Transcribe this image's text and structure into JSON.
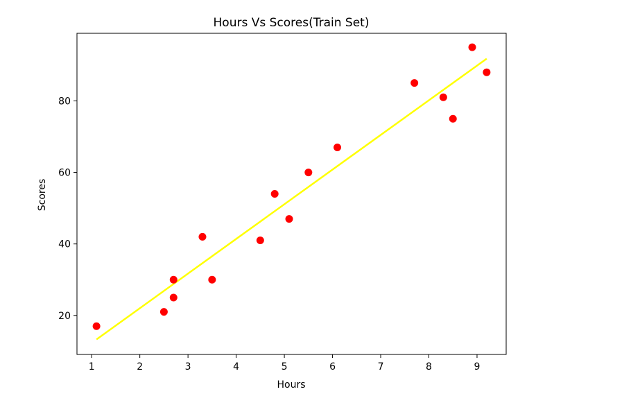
{
  "chart_data": {
    "type": "scatter",
    "title": "Hours Vs Scores(Train Set)",
    "xlabel": "Hours",
    "ylabel": "Scores",
    "xlim": [
      0.695,
      9.605
    ],
    "ylim": [
      9.1,
      98.9
    ],
    "xticks": [
      1,
      2,
      3,
      4,
      5,
      6,
      7,
      8,
      9
    ],
    "yticks": [
      20,
      40,
      60,
      80
    ],
    "grid": false,
    "series": [
      {
        "type": "scatter",
        "color": "#ff0000",
        "points": [
          {
            "x": 1.1,
            "y": 17
          },
          {
            "x": 2.5,
            "y": 21
          },
          {
            "x": 2.7,
            "y": 25
          },
          {
            "x": 2.7,
            "y": 30
          },
          {
            "x": 3.3,
            "y": 42
          },
          {
            "x": 3.5,
            "y": 30
          },
          {
            "x": 4.5,
            "y": 41
          },
          {
            "x": 4.8,
            "y": 54
          },
          {
            "x": 5.1,
            "y": 47
          },
          {
            "x": 5.5,
            "y": 60
          },
          {
            "x": 6.1,
            "y": 67
          },
          {
            "x": 7.7,
            "y": 85
          },
          {
            "x": 8.3,
            "y": 81
          },
          {
            "x": 8.5,
            "y": 75
          },
          {
            "x": 8.9,
            "y": 95
          },
          {
            "x": 9.2,
            "y": 88
          }
        ]
      },
      {
        "type": "line",
        "color": "#ffff00",
        "points": [
          {
            "x": 1.1,
            "y": 13.3
          },
          {
            "x": 9.2,
            "y": 91.8
          }
        ]
      }
    ]
  }
}
